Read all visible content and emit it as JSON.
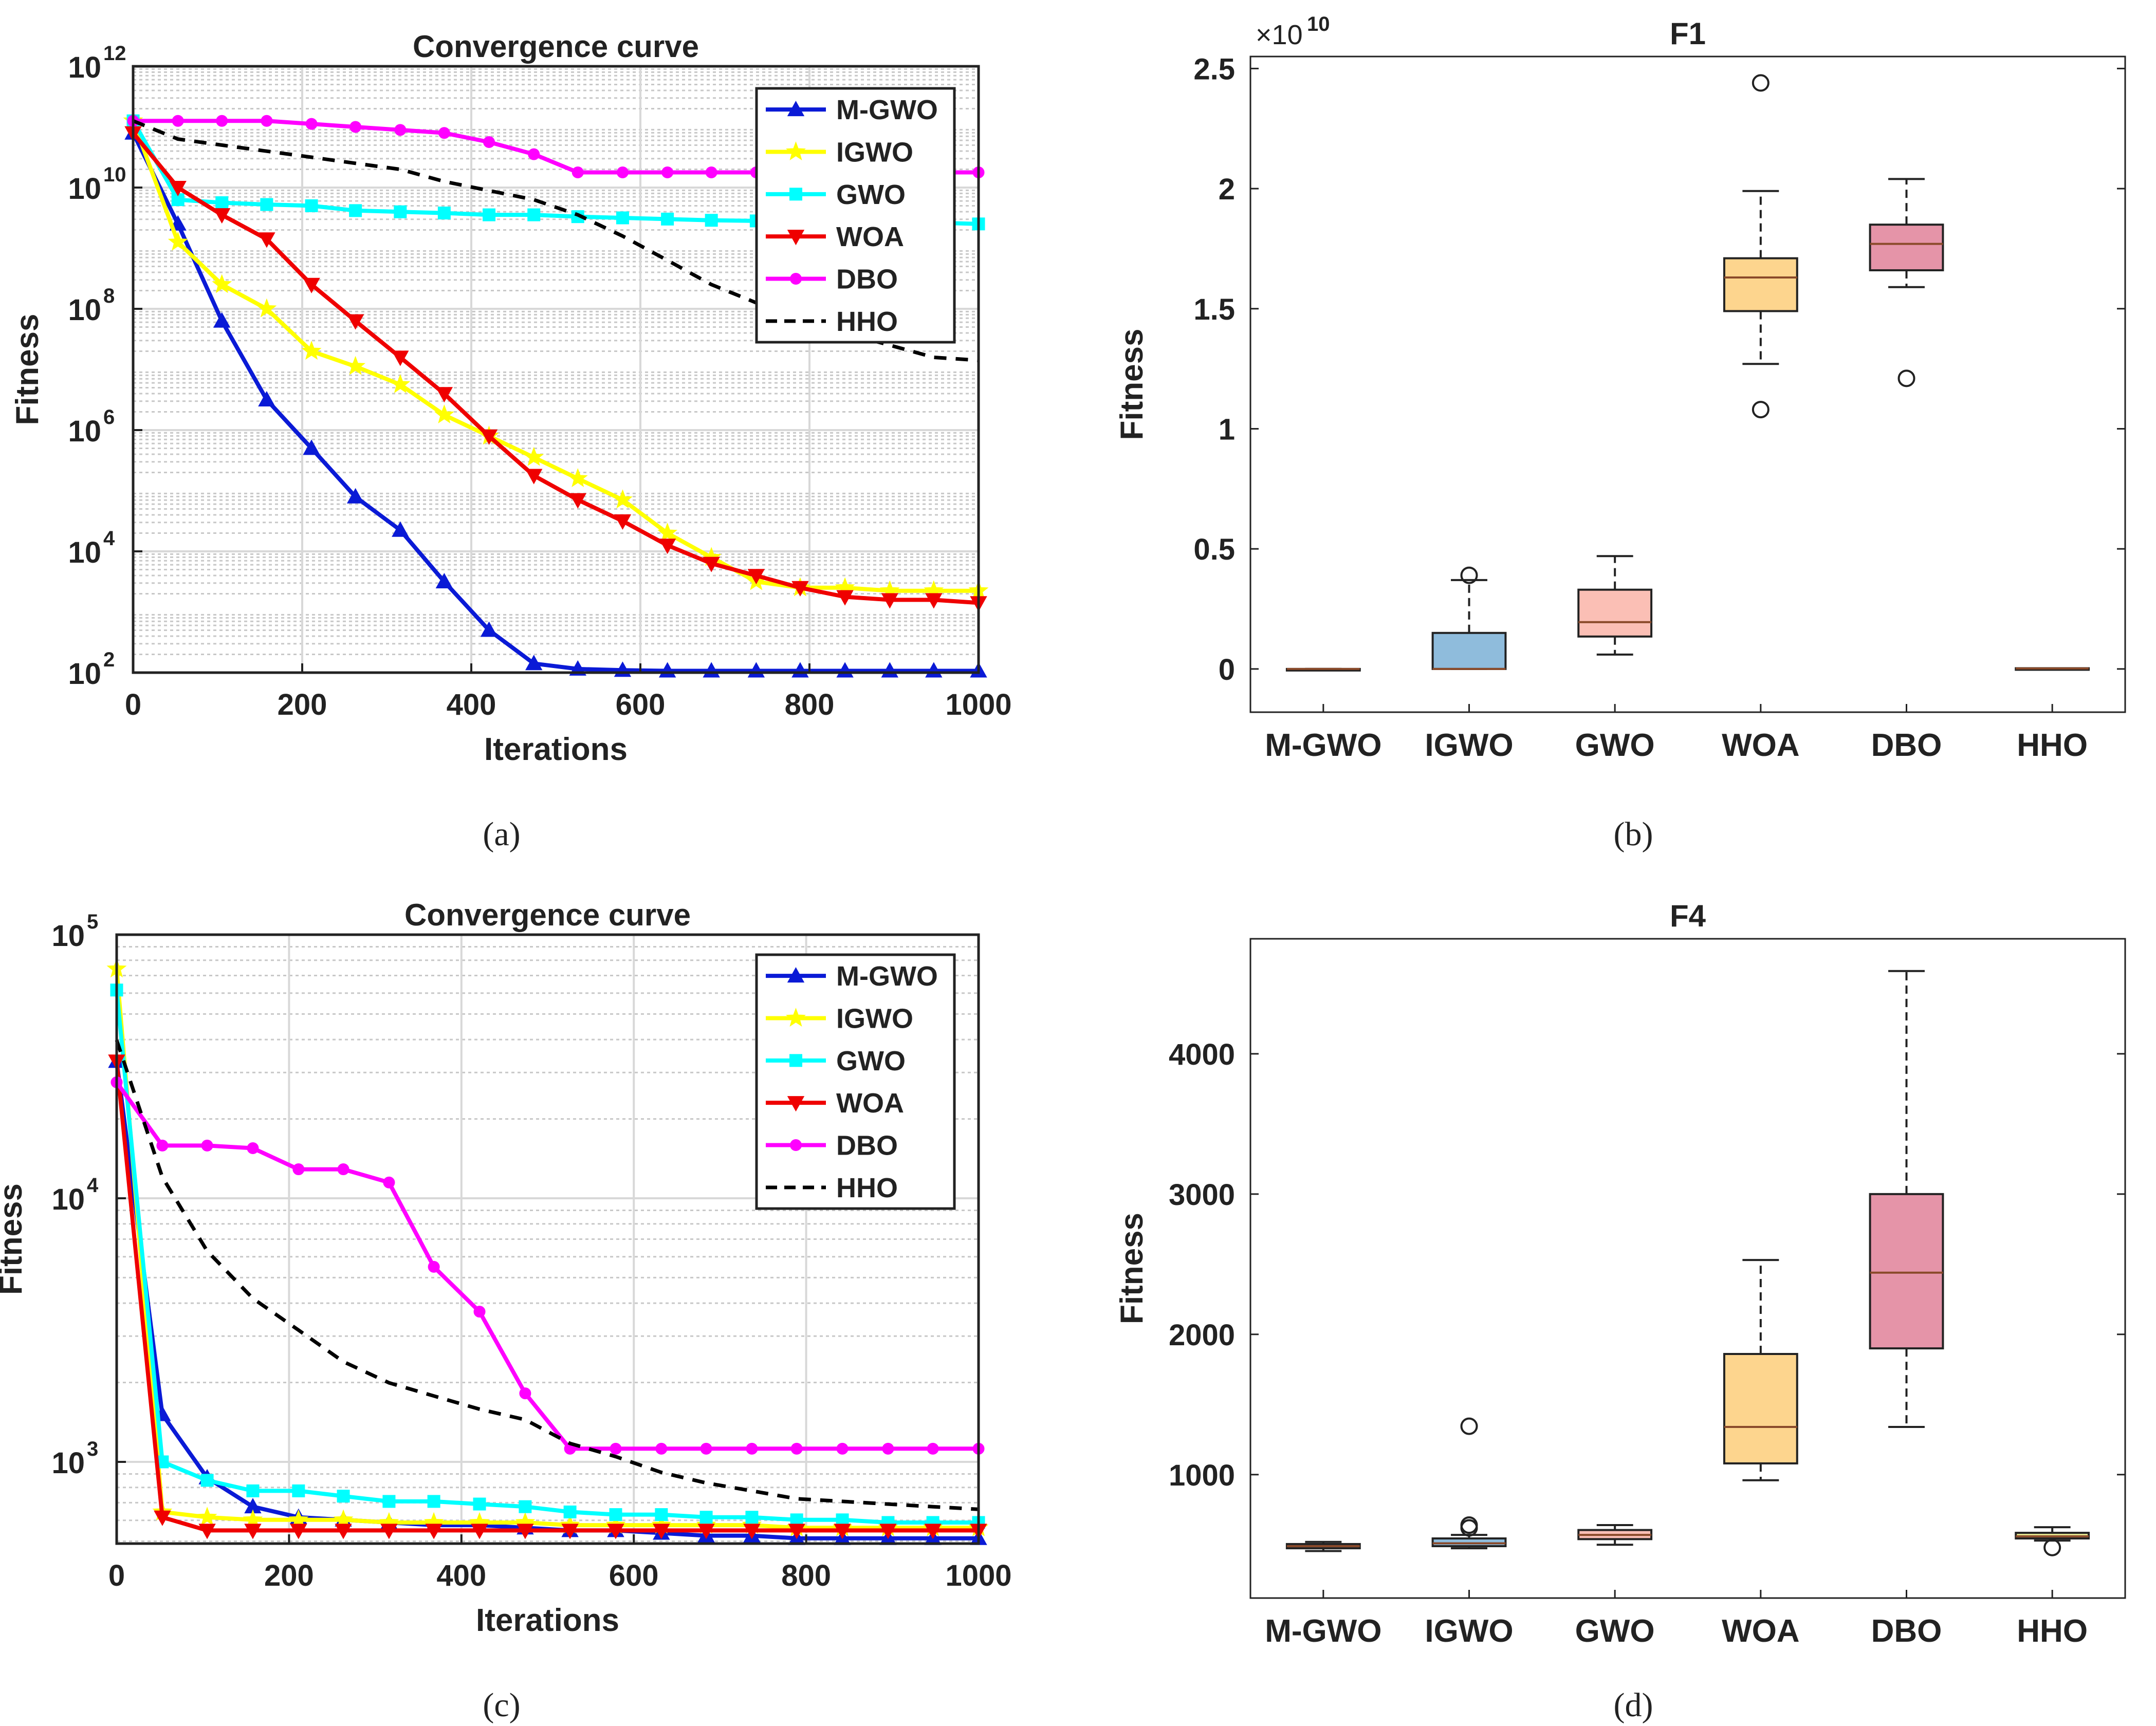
{
  "chart_data": [
    {
      "panel": "a",
      "caption": "(a)",
      "type": "line",
      "title": "Convergence curve",
      "xlabel": "Iterations",
      "ylabel": "Fitness",
      "yscale": "log",
      "xlim": [
        0,
        1000
      ],
      "ylim_exp": [
        2,
        12
      ],
      "xticks": [
        0,
        200,
        400,
        600,
        800,
        1000
      ],
      "xtick_labels": [
        "0",
        "200",
        "400",
        "600",
        "800",
        "1000"
      ],
      "yticks_exp": [
        2,
        4,
        6,
        8,
        10,
        12
      ],
      "ytick_bases": [
        "10",
        "10",
        "10",
        "10",
        "10",
        "10"
      ],
      "ytick_exps": [
        "2",
        "4",
        "6",
        "8",
        "10",
        "12"
      ],
      "legend_position": "top-right",
      "x": [
        0,
        53,
        105,
        158,
        211,
        263,
        316,
        368,
        421,
        474,
        526,
        579,
        632,
        684,
        737,
        789,
        842,
        895,
        947,
        1000
      ],
      "series": [
        {
          "name": "M-GWO",
          "color": "#0a1ad6",
          "marker": "triangle-up",
          "dash": "",
          "log10": [
            10.9,
            9.4,
            7.8,
            6.5,
            5.7,
            4.9,
            4.35,
            3.5,
            2.7,
            2.15,
            2.06,
            2.04,
            2.03,
            2.03,
            2.03,
            2.03,
            2.03,
            2.03,
            2.03,
            2.03
          ]
        },
        {
          "name": "IGWO",
          "color": "#ffff00",
          "marker": "star",
          "dash": "",
          "log10": [
            11.1,
            9.1,
            8.4,
            8.0,
            7.3,
            7.05,
            6.75,
            6.25,
            5.9,
            5.55,
            5.2,
            4.85,
            4.3,
            3.9,
            3.5,
            3.4,
            3.4,
            3.35,
            3.35,
            3.35
          ]
        },
        {
          "name": "GWO",
          "color": "#00ffff",
          "marker": "square",
          "dash": "",
          "log10": [
            11.1,
            9.8,
            9.75,
            9.72,
            9.7,
            9.62,
            9.6,
            9.58,
            9.55,
            9.55,
            9.52,
            9.5,
            9.48,
            9.46,
            9.45,
            9.43,
            9.42,
            9.42,
            9.42,
            9.4
          ]
        },
        {
          "name": "WOA",
          "color": "#ef0000",
          "marker": "triangle-down",
          "dash": "",
          "log10": [
            10.9,
            10.0,
            9.55,
            9.15,
            8.4,
            7.8,
            7.2,
            6.6,
            5.9,
            5.25,
            4.85,
            4.5,
            4.1,
            3.8,
            3.6,
            3.4,
            3.25,
            3.2,
            3.2,
            3.15
          ]
        },
        {
          "name": "DBO",
          "color": "#ff00ff",
          "marker": "circle",
          "dash": "",
          "log10": [
            11.1,
            11.1,
            11.1,
            11.1,
            11.05,
            11.0,
            10.95,
            10.9,
            10.75,
            10.55,
            10.25,
            10.25,
            10.25,
            10.25,
            10.25,
            10.25,
            10.25,
            10.25,
            10.25,
            10.25
          ]
        },
        {
          "name": "HHO",
          "color": "#000000",
          "marker": "none",
          "dash": "24,18",
          "log10": [
            11.1,
            10.8,
            10.7,
            10.6,
            10.5,
            10.4,
            10.3,
            10.1,
            9.95,
            9.8,
            9.55,
            9.2,
            8.8,
            8.4,
            8.1,
            7.8,
            7.6,
            7.4,
            7.2,
            7.15
          ]
        }
      ]
    },
    {
      "panel": "b",
      "caption": "(b)",
      "type": "box",
      "title": "F1",
      "xlabel": "",
      "ylabel": "Fitness",
      "ylim": [
        -0.18,
        2.55
      ],
      "yticks": [
        0,
        0.5,
        1,
        1.5,
        2,
        2.5
      ],
      "ytick_labels": [
        "0",
        "0.5",
        "1",
        "1.5",
        "2",
        "2.5"
      ],
      "multiplier_base": "×10",
      "multiplier_exp": "10",
      "categories": [
        "M-GWO",
        "IGWO",
        "GWO",
        "WOA",
        "DBO",
        "HHO"
      ],
      "boxes": [
        {
          "color": "#e8a0a8",
          "min": 0,
          "q1": 0,
          "median": 0,
          "q3": 0,
          "max": 0,
          "outliers": []
        },
        {
          "color": "#8fbcdc",
          "min": 0,
          "q1": 0,
          "median": 0,
          "q3": 0.15,
          "max": 0.37,
          "outliers": [
            0.39
          ]
        },
        {
          "color": "#fbbfb5",
          "min": 0.06,
          "q1": 0.135,
          "median": 0.195,
          "q3": 0.33,
          "max": 0.47,
          "outliers": []
        },
        {
          "color": "#fdd58e",
          "min": 1.27,
          "q1": 1.49,
          "median": 1.63,
          "q3": 1.71,
          "max": 1.99,
          "outliers": [
            1.08,
            2.44
          ]
        },
        {
          "color": "#e594a8",
          "min": 1.59,
          "q1": 1.66,
          "median": 1.77,
          "q3": 1.85,
          "max": 2.04,
          "outliers": [
            1.21
          ]
        },
        {
          "color": "#e8e890",
          "min": 0.002,
          "q1": 0.002,
          "median": 0.002,
          "q3": 0.003,
          "max": 0.003,
          "outliers": []
        }
      ]
    },
    {
      "panel": "c",
      "caption": "(c)",
      "type": "line",
      "title": "Convergence curve",
      "xlabel": "Iterations",
      "ylabel": "Fitness",
      "yscale": "log",
      "xlim": [
        0,
        1000
      ],
      "ylim_exp": [
        2.69,
        5.0
      ],
      "xticks": [
        0,
        200,
        400,
        600,
        800,
        1000
      ],
      "xtick_labels": [
        "0",
        "200",
        "400",
        "600",
        "800",
        "1000"
      ],
      "yticks_exp": [
        3,
        4,
        5
      ],
      "ytick_bases": [
        "10",
        "10",
        "10"
      ],
      "ytick_exps": [
        "3",
        "4",
        "5"
      ],
      "legend_position": "top-right",
      "x": [
        0,
        53,
        105,
        158,
        211,
        263,
        316,
        368,
        421,
        474,
        526,
        579,
        632,
        684,
        737,
        789,
        842,
        895,
        947,
        1000
      ],
      "series": [
        {
          "name": "M-GWO",
          "color": "#0a1ad6",
          "marker": "triangle-up",
          "dash": "",
          "log10": [
            4.52,
            3.18,
            2.94,
            2.83,
            2.79,
            2.78,
            2.77,
            2.76,
            2.76,
            2.75,
            2.74,
            2.74,
            2.73,
            2.72,
            2.72,
            2.71,
            2.71,
            2.71,
            2.71,
            2.71
          ]
        },
        {
          "name": "IGWO",
          "color": "#ffff00",
          "marker": "star",
          "dash": "",
          "log10": [
            4.87,
            2.81,
            2.79,
            2.78,
            2.78,
            2.78,
            2.77,
            2.77,
            2.77,
            2.77,
            2.76,
            2.76,
            2.76,
            2.76,
            2.76,
            2.75,
            2.75,
            2.75,
            2.75,
            2.75
          ]
        },
        {
          "name": "GWO",
          "color": "#00ffff",
          "marker": "square",
          "dash": "",
          "log10": [
            4.79,
            3.0,
            2.93,
            2.89,
            2.89,
            2.87,
            2.85,
            2.85,
            2.84,
            2.83,
            2.81,
            2.8,
            2.8,
            2.79,
            2.79,
            2.78,
            2.78,
            2.77,
            2.77,
            2.77
          ]
        },
        {
          "name": "WOA",
          "color": "#ef0000",
          "marker": "triangle-down",
          "dash": "",
          "log10": [
            4.52,
            2.79,
            2.74,
            2.74,
            2.74,
            2.74,
            2.74,
            2.74,
            2.74,
            2.74,
            2.74,
            2.74,
            2.74,
            2.74,
            2.74,
            2.74,
            2.74,
            2.74,
            2.74,
            2.74
          ]
        },
        {
          "name": "DBO",
          "color": "#ff00ff",
          "marker": "circle",
          "dash": "",
          "log10": [
            4.44,
            4.2,
            4.2,
            4.19,
            4.11,
            4.11,
            4.06,
            3.74,
            3.57,
            3.26,
            3.05,
            3.05,
            3.05,
            3.05,
            3.05,
            3.05,
            3.05,
            3.05,
            3.05,
            3.05
          ]
        },
        {
          "name": "HHO",
          "color": "#000000",
          "marker": "none",
          "dash": "24,18",
          "log10": [
            4.6,
            4.08,
            3.8,
            3.62,
            3.5,
            3.38,
            3.3,
            3.25,
            3.2,
            3.16,
            3.07,
            3.02,
            2.96,
            2.92,
            2.89,
            2.86,
            2.85,
            2.84,
            2.83,
            2.82
          ]
        }
      ]
    },
    {
      "panel": "d",
      "caption": "(d)",
      "type": "box",
      "title": "F4",
      "xlabel": "",
      "ylabel": "Fitness",
      "ylim": [
        120,
        4820
      ],
      "yticks": [
        1000,
        2000,
        3000,
        4000
      ],
      "ytick_labels": [
        "1000",
        "2000",
        "3000",
        "4000"
      ],
      "categories": [
        "M-GWO",
        "IGWO",
        "GWO",
        "WOA",
        "DBO",
        "HHO"
      ],
      "boxes": [
        {
          "color": "#e8a0a8",
          "min": 455,
          "q1": 475,
          "median": 490,
          "q3": 505,
          "max": 520,
          "outliers": []
        },
        {
          "color": "#8fbcdc",
          "min": 475,
          "q1": 490,
          "median": 510,
          "q3": 545,
          "max": 570,
          "outliers": [
            1345,
            640,
            620
          ]
        },
        {
          "color": "#fbbfb5",
          "min": 500,
          "q1": 540,
          "median": 570,
          "q3": 605,
          "max": 640,
          "outliers": []
        },
        {
          "color": "#fdd58e",
          "min": 960,
          "q1": 1080,
          "median": 1340,
          "q3": 1860,
          "max": 2530,
          "outliers": []
        },
        {
          "color": "#e594a8",
          "min": 1340,
          "q1": 1900,
          "median": 2440,
          "q3": 3000,
          "max": 4590,
          "outliers": []
        },
        {
          "color": "#e8e890",
          "min": 530,
          "q1": 545,
          "median": 560,
          "q3": 585,
          "max": 625,
          "outliers": [
            480
          ]
        }
      ]
    }
  ]
}
